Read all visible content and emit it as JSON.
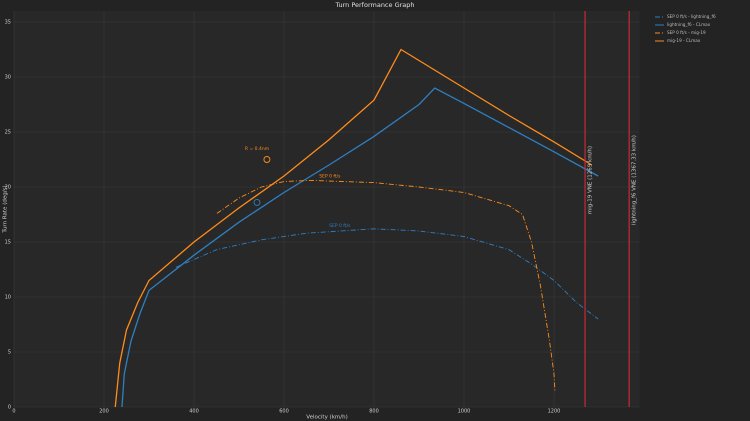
{
  "chart_data": {
    "type": "line",
    "title": "Turn Performance Graph",
    "x_label": "Velocity (km/h)",
    "y_label": "Turn Rate (deg/s)",
    "xlim": [
      0,
      1390
    ],
    "ylim": [
      0,
      36
    ],
    "xticks": [
      0,
      200,
      400,
      600,
      800,
      1000,
      1200
    ],
    "yticks": [
      0,
      5,
      10,
      15,
      20,
      25,
      30,
      35
    ],
    "grid": true,
    "legend": "outside-right",
    "series": [
      {
        "name": "SEP 0 ft/s - lightning_f6",
        "color": "#2f7fc1",
        "style": "dashdot",
        "x": [
          360,
          450,
          550,
          650,
          800,
          900,
          1000,
          1100,
          1150,
          1200,
          1250,
          1298
        ],
        "values": [
          12.7,
          14.3,
          15.2,
          15.8,
          16.2,
          16.0,
          15.5,
          14.3,
          13.0,
          11.5,
          9.5,
          8.0
        ]
      },
      {
        "name": "lightning_f6 - CLmax",
        "color": "#2f7fc1",
        "style": "solid",
        "x": [
          240,
          245,
          260,
          280,
          300,
          400,
          500,
          600,
          700,
          800,
          900,
          935,
          1000,
          1100,
          1200,
          1298
        ],
        "values": [
          0,
          3,
          6,
          8.5,
          10.6,
          13.8,
          16.8,
          19.5,
          22,
          24.6,
          27.5,
          29.0,
          27.6,
          25.4,
          23.2,
          21.0
        ]
      },
      {
        "name": "SEP 0 ft/s - mig-19",
        "color": "#ff8c1a",
        "style": "dashdot",
        "x": [
          451,
          500,
          550,
          600,
          660,
          800,
          900,
          1000,
          1100,
          1130,
          1150,
          1170,
          1190,
          1200,
          1202
        ],
        "values": [
          17.6,
          19,
          20,
          20.5,
          20.6,
          20.4,
          20.0,
          19.5,
          18.3,
          17.5,
          15,
          11,
          6,
          3,
          1.5
        ]
      },
      {
        "name": "mig-19 - CLmax",
        "color": "#ff8c1a",
        "style": "solid",
        "x": [
          225,
          235,
          250,
          275,
          300,
          400,
          500,
          600,
          700,
          800,
          860,
          1000,
          1100,
          1200,
          1284
        ],
        "values": [
          0,
          4,
          7,
          9.5,
          11.5,
          15.0,
          18.1,
          21,
          24.3,
          27.9,
          32.5,
          29.0,
          26.5,
          24.1,
          22.0
        ]
      }
    ],
    "vlines": [
      {
        "x": 1269,
        "label": "mig-19 VNE (1269 km/h)",
        "color": "#d42a3a"
      },
      {
        "x": 1367,
        "label": "lightning_f6 VNE (1367.33 km/h)",
        "color": "#d42a3a"
      }
    ],
    "markers": [
      {
        "x": 562,
        "y": 22.5,
        "color": "#ff8c1a"
      },
      {
        "x": 540,
        "y": 18.6,
        "color": "#2f7fc1"
      }
    ],
    "annotations": [
      {
        "text": "R = 0.4nm",
        "x": 540,
        "y": 23.5,
        "color": "#ff8c1a"
      },
      {
        "text": "SEP 0 ft/s",
        "x": 702,
        "y": 21,
        "color": "#ff8c1a"
      },
      {
        "text": "SEP 0 ft/s",
        "x": 724,
        "y": 16.5,
        "color": "#2f7fc1"
      }
    ]
  }
}
